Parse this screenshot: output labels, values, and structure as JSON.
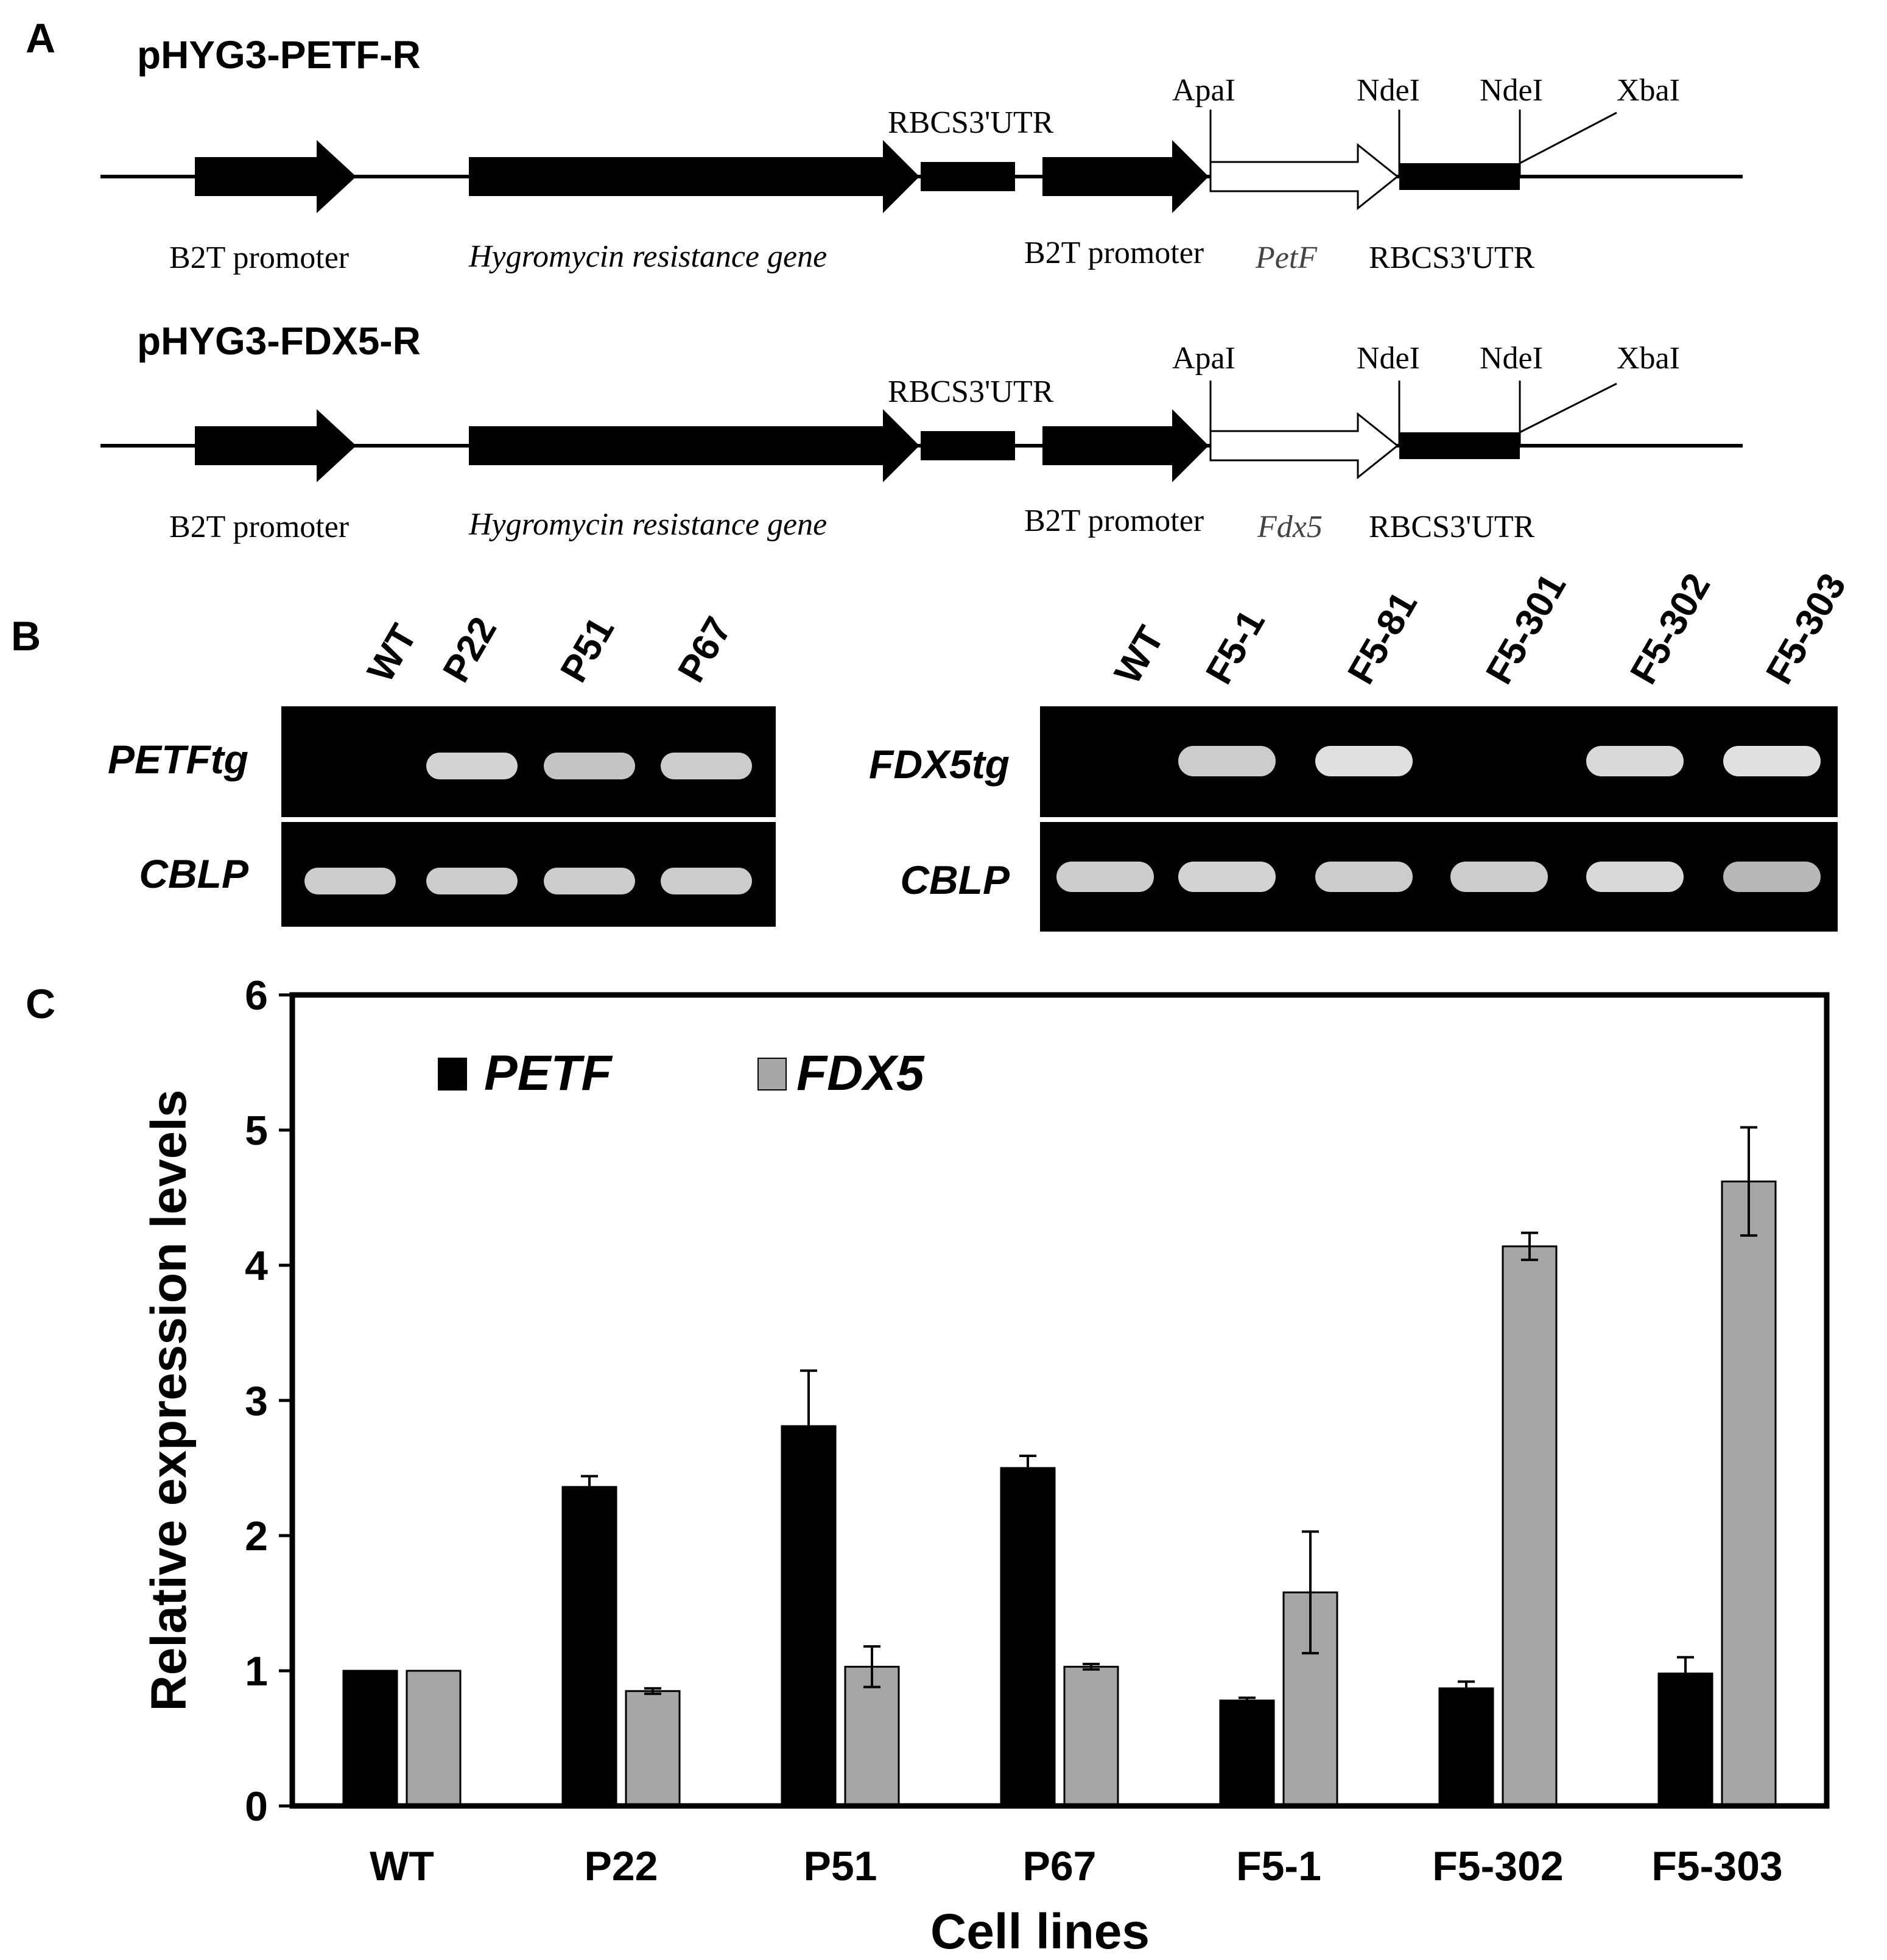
{
  "panel_a": {
    "panel_letter": "A",
    "constructs": [
      {
        "name": "pHYG3-PETF-R",
        "sites": [
          "ApaI",
          "NdeI",
          "NdeI",
          "XbaI"
        ],
        "top_label": "RBCS3'UTR",
        "bottom_labels": [
          "B2T promoter",
          "Hygromycin resistance gene",
          "B2T promoter",
          "PetF",
          "RBCS3'UTR"
        ]
      },
      {
        "name": "pHYG3-FDX5-R",
        "sites": [
          "ApaI",
          "NdeI",
          "NdeI",
          "XbaI"
        ],
        "top_label": "RBCS3'UTR",
        "bottom_labels": [
          "B2T promoter",
          "Hygromycin resistance gene",
          "B2T promoter",
          "Fdx5",
          "RBCS3'UTR"
        ]
      }
    ]
  },
  "panel_b": {
    "panel_letter": "B",
    "gels": [
      {
        "lanes": [
          "WT",
          "P22",
          "P51",
          "P67"
        ],
        "rows": [
          {
            "label": "PETFtg",
            "band_intensity": [
              0,
              0.8,
              0.7,
              0.75
            ]
          },
          {
            "label": "CBLP",
            "band_intensity": [
              0.75,
              0.75,
              0.75,
              0.75
            ]
          }
        ]
      },
      {
        "lanes": [
          "WT",
          "F5-1",
          "F5-81",
          "F5-301",
          "F5-302",
          "F5-303"
        ],
        "rows": [
          {
            "label": "FDX5tg",
            "band_intensity": [
              0,
              0.75,
              0.9,
              0,
              0.85,
              0.9
            ]
          },
          {
            "label": "CBLP",
            "band_intensity": [
              0.75,
              0.8,
              0.75,
              0.75,
              0.85,
              0.6
            ]
          }
        ]
      }
    ]
  },
  "panel_c": {
    "panel_letter": "C"
  },
  "chart_data": {
    "type": "bar",
    "title": "",
    "xlabel": "Cell lines",
    "ylabel": "Relative expression levels",
    "ylim": [
      0,
      6
    ],
    "yticks": [
      "0",
      "1",
      "2",
      "3",
      "4",
      "5",
      "6"
    ],
    "grid": false,
    "legend_position": "top-left",
    "categories": [
      "WT",
      "P22",
      "P51",
      "P67",
      "F5-1",
      "F5-302",
      "F5-303"
    ],
    "series": [
      {
        "name": "PETF",
        "color": "#000000",
        "values": [
          1.0,
          2.36,
          2.81,
          2.5,
          0.78,
          0.87,
          0.98
        ],
        "errors": [
          0.0,
          0.08,
          0.41,
          0.09,
          0.02,
          0.05,
          0.12
        ]
      },
      {
        "name": "FDX5",
        "color": "#a6a6a6",
        "values": [
          1.0,
          0.85,
          1.03,
          1.03,
          1.58,
          4.14,
          4.62
        ],
        "errors": [
          0.0,
          0.02,
          0.15,
          0.02,
          0.45,
          0.1,
          0.4
        ]
      }
    ]
  }
}
